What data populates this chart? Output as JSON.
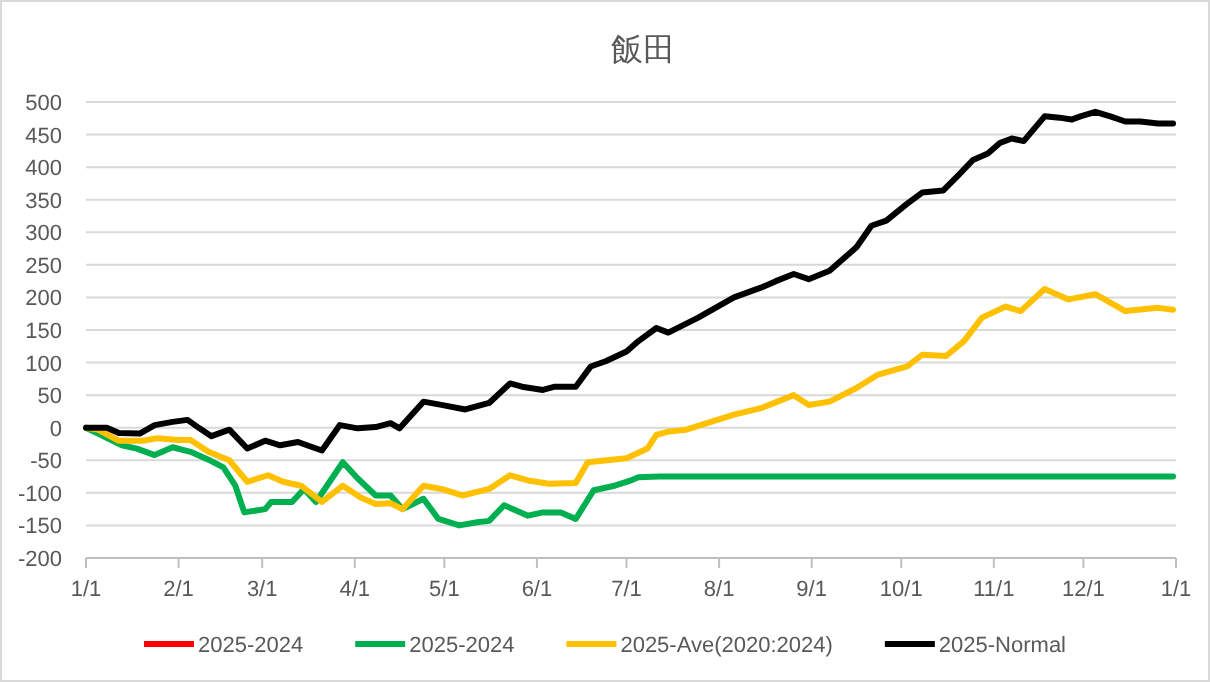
{
  "chart_data": {
    "type": "line",
    "title": "飯田",
    "xlim": [
      "2025-01-01",
      "2026-01-01"
    ],
    "xticks": [
      {
        "value": "2025-01-01",
        "label": "1/1"
      },
      {
        "value": "2025-02-01",
        "label": "2/1"
      },
      {
        "value": "2025-03-01",
        "label": "3/1"
      },
      {
        "value": "2025-04-01",
        "label": "4/1"
      },
      {
        "value": "2025-05-01",
        "label": "5/1"
      },
      {
        "value": "2025-06-01",
        "label": "6/1"
      },
      {
        "value": "2025-07-01",
        "label": "7/1"
      },
      {
        "value": "2025-08-01",
        "label": "8/1"
      },
      {
        "value": "2025-09-01",
        "label": "9/1"
      },
      {
        "value": "2025-10-01",
        "label": "10/1"
      },
      {
        "value": "2025-11-01",
        "label": "11/1"
      },
      {
        "value": "2025-12-01",
        "label": "12/1"
      },
      {
        "value": "2026-01-01",
        "label": "1/1"
      }
    ],
    "ylim": [
      -200,
      500
    ],
    "yticks": [
      -200,
      -150,
      -100,
      -50,
      0,
      50,
      100,
      150,
      200,
      250,
      300,
      350,
      400,
      450,
      500
    ],
    "grid": "y",
    "legend": "bottom",
    "series": [
      {
        "name": "2025-2024",
        "color": "#ff0000"
      },
      {
        "name": "2025-2024",
        "color": "#00b050",
        "x": [
          "2025-01-01",
          "2025-01-05",
          "2025-01-13",
          "2025-01-18",
          "2025-01-21",
          "2025-01-24",
          "2025-01-30",
          "2025-02-05",
          "2025-02-11",
          "2025-02-16",
          "2025-02-20",
          "2025-02-23",
          "2025-03-02",
          "2025-03-04",
          "2025-03-11",
          "2025-03-15",
          "2025-03-19",
          "2025-03-28",
          "2025-04-02",
          "2025-04-08",
          "2025-04-13",
          "2025-04-17",
          "2025-04-24",
          "2025-04-29",
          "2025-05-06",
          "2025-05-12",
          "2025-05-16",
          "2025-05-21",
          "2025-05-29",
          "2025-06-03",
          "2025-06-09",
          "2025-06-14",
          "2025-06-20",
          "2025-06-27",
          "2025-07-01",
          "2025-07-03",
          "2025-07-05",
          "2025-07-12",
          "2025-12-31"
        ],
        "values": [
          0,
          -9,
          -27,
          -32,
          -37,
          -42,
          -30,
          -37,
          -49,
          -61,
          -89,
          -130,
          -125,
          -114,
          -114,
          -94,
          -114,
          -53,
          -78,
          -104,
          -104,
          -125,
          -109,
          -140,
          -150,
          -145,
          -143,
          -119,
          -135,
          -130,
          -130,
          -140,
          -96,
          -89,
          -83,
          -80,
          -76,
          -75,
          -75
        ]
      },
      {
        "name": "2025-Ave(2020:2024)",
        "color": "#ffc000",
        "x": [
          "2025-01-01",
          "2025-01-05",
          "2025-01-12",
          "2025-01-20",
          "2025-01-25",
          "2025-02-01",
          "2025-02-05",
          "2025-02-11",
          "2025-02-18",
          "2025-02-24",
          "2025-03-03",
          "2025-03-08",
          "2025-03-14",
          "2025-03-21",
          "2025-03-28",
          "2025-04-03",
          "2025-04-08",
          "2025-04-13",
          "2025-04-17",
          "2025-04-24",
          "2025-04-30",
          "2025-05-07",
          "2025-05-16",
          "2025-05-23",
          "2025-05-29",
          "2025-06-05",
          "2025-06-14",
          "2025-06-18",
          "2025-07-01",
          "2025-07-08",
          "2025-07-11",
          "2025-07-15",
          "2025-07-21",
          "2025-08-06",
          "2025-08-15",
          "2025-08-26",
          "2025-08-31",
          "2025-09-07",
          "2025-09-16",
          "2025-09-23",
          "2025-10-03",
          "2025-10-08",
          "2025-10-16",
          "2025-10-22",
          "2025-10-28",
          "2025-11-05",
          "2025-11-10",
          "2025-11-18",
          "2025-11-26",
          "2025-12-05",
          "2025-12-15",
          "2025-12-26",
          "2025-12-31"
        ],
        "values": [
          0,
          -3,
          -20,
          -20,
          -16,
          -19,
          -19,
          -37,
          -50,
          -83,
          -73,
          -83,
          -89,
          -114,
          -89,
          -107,
          -117,
          -116,
          -125,
          -89,
          -94,
          -104,
          -94,
          -73,
          -81,
          -86,
          -85,
          -53,
          -47,
          -32,
          -11,
          -6,
          -3,
          20,
          30,
          50,
          35,
          40,
          61,
          81,
          94,
          112,
          110,
          133,
          169,
          186,
          179,
          213,
          197,
          205,
          179,
          184,
          181
        ]
      },
      {
        "name": "2025-Normal",
        "color": "#000000",
        "x": [
          "2025-01-01",
          "2025-01-08",
          "2025-01-12",
          "2025-01-19",
          "2025-01-24",
          "2025-01-30",
          "2025-02-04",
          "2025-02-08",
          "2025-02-12",
          "2025-02-18",
          "2025-02-24",
          "2025-03-02",
          "2025-03-07",
          "2025-03-13",
          "2025-03-16",
          "2025-03-21",
          "2025-03-27",
          "2025-04-02",
          "2025-04-08",
          "2025-04-13",
          "2025-04-16",
          "2025-04-24",
          "2025-04-30",
          "2025-05-08",
          "2025-05-16",
          "2025-05-23",
          "2025-05-27",
          "2025-06-03",
          "2025-06-07",
          "2025-06-14",
          "2025-06-19",
          "2025-06-24",
          "2025-07-01",
          "2025-07-05",
          "2025-07-11",
          "2025-07-15",
          "2025-07-25",
          "2025-08-06",
          "2025-08-15",
          "2025-08-20",
          "2025-08-26",
          "2025-08-31",
          "2025-09-07",
          "2025-09-16",
          "2025-09-21",
          "2025-09-26",
          "2025-10-03",
          "2025-10-08",
          "2025-10-15",
          "2025-10-20",
          "2025-10-25",
          "2025-10-30",
          "2025-11-03",
          "2025-11-07",
          "2025-11-11",
          "2025-11-18",
          "2025-11-23",
          "2025-11-27",
          "2025-11-30",
          "2025-12-05",
          "2025-12-10",
          "2025-12-15",
          "2025-12-20",
          "2025-12-26",
          "2025-12-31"
        ],
        "values": [
          0,
          0,
          -8,
          -9,
          4,
          9,
          12,
          -1,
          -13,
          -3,
          -32,
          -20,
          -27,
          -22,
          -27,
          -35,
          4,
          -1,
          1,
          7,
          -1,
          40,
          35,
          28,
          38,
          68,
          63,
          58,
          63,
          63,
          94,
          102,
          117,
          133,
          153,
          146,
          169,
          200,
          215,
          225,
          236,
          228,
          241,
          277,
          310,
          318,
          344,
          361,
          364,
          387,
          411,
          421,
          437,
          444,
          440,
          478,
          476,
          473,
          478,
          485,
          478,
          470,
          470,
          467,
          467
        ]
      }
    ]
  }
}
